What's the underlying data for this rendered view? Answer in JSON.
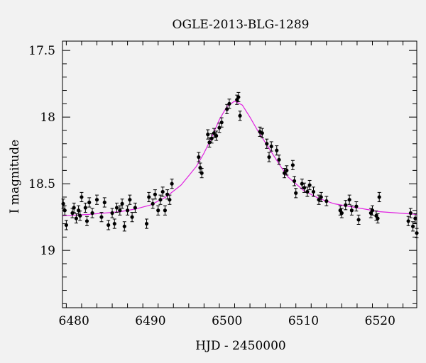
{
  "chart_data": {
    "type": "scatter",
    "title": "OGLE-2013-BLG-1289",
    "xlabel": "HJD - 2450000",
    "ylabel": "I magnitude",
    "xlim": [
      6478.5,
      6524.8
    ],
    "ylim": [
      19.43,
      17.43
    ],
    "y_inverted": true,
    "xticks": [
      6480,
      6490,
      6500,
      6510,
      6520
    ],
    "yticks": [
      17.5,
      18,
      18.5,
      19
    ],
    "ytick_labels": [
      "17.5",
      "18",
      "18.5",
      "19"
    ],
    "colors": {
      "points": "#000000",
      "model": "#e020e0",
      "background": "#f2f2f2"
    },
    "model": {
      "label": "",
      "x": [
        6478.5,
        6482,
        6486,
        6488,
        6490,
        6492,
        6494,
        6496,
        6497,
        6498,
        6499,
        6500,
        6501,
        6502,
        6503,
        6504,
        6505,
        6506,
        6507,
        6508,
        6510,
        6512,
        6514,
        6517,
        6520,
        6524.8
      ],
      "y": [
        18.74,
        18.73,
        18.71,
        18.69,
        18.66,
        18.6,
        18.51,
        18.37,
        18.27,
        18.15,
        18.02,
        17.92,
        17.88,
        17.91,
        18.0,
        18.1,
        18.19,
        18.28,
        18.37,
        18.45,
        18.55,
        18.61,
        18.65,
        18.68,
        18.71,
        18.73
      ]
    },
    "series": [
      {
        "x": [
          6478.6,
          6478.8,
          6479.0,
          6479.8,
          6480.0,
          6480.3,
          6480.6,
          6480.8,
          6481.0,
          6481.5,
          6481.7,
          6482.0,
          6482.4,
          6483.0,
          6483.6,
          6484.0,
          6484.5,
          6485.0,
          6485.3,
          6485.6,
          6486.0,
          6486.3,
          6486.6,
          6487.0,
          6487.3,
          6487.6,
          6488.0,
          6489.5,
          6489.8,
          6490.3,
          6490.6,
          6491.0,
          6491.3,
          6491.6,
          6491.9,
          6492.2,
          6492.5,
          6492.8,
          6496.3,
          6496.5,
          6496.7,
          6497.5,
          6497.7,
          6498.0,
          6498.3,
          6498.6,
          6499.0,
          6499.3,
          6500.0,
          6500.3,
          6501.3,
          6501.5,
          6501.7,
          6504.3,
          6504.6,
          6505.2,
          6505.5,
          6505.8,
          6506.5,
          6506.8,
          6507.5,
          6507.8,
          6508.6,
          6508.8,
          6509.0,
          6509.8,
          6510.1,
          6510.5,
          6510.8,
          6511.3,
          6512.0,
          6512.3,
          6513.0,
          6514.8,
          6515.0,
          6515.5,
          6516.0,
          6516.3,
          6516.9,
          6517.2,
          6518.8,
          6519.0,
          6519.5,
          6519.7,
          6519.9,
          6523.7,
          6524.0,
          6524.3,
          6524.6,
          6524.8
        ],
        "y": [
          18.65,
          18.7,
          18.81,
          18.72,
          18.68,
          18.76,
          18.7,
          18.74,
          18.6,
          18.68,
          18.78,
          18.64,
          18.72,
          18.62,
          18.75,
          18.64,
          18.81,
          18.72,
          18.8,
          18.68,
          18.7,
          18.65,
          18.82,
          18.7,
          18.62,
          18.75,
          18.68,
          18.8,
          18.6,
          18.65,
          18.58,
          18.7,
          18.62,
          18.56,
          18.7,
          18.58,
          18.62,
          18.5,
          18.3,
          18.38,
          18.42,
          18.13,
          18.19,
          18.16,
          18.12,
          18.14,
          18.08,
          18.04,
          17.94,
          17.9,
          17.87,
          17.85,
          17.99,
          18.11,
          18.12,
          18.2,
          18.3,
          18.22,
          18.25,
          18.32,
          18.42,
          18.4,
          18.36,
          18.48,
          18.57,
          18.5,
          18.53,
          18.56,
          18.51,
          18.56,
          18.62,
          18.6,
          18.63,
          18.7,
          18.72,
          18.66,
          18.62,
          18.7,
          18.67,
          18.77,
          18.72,
          18.7,
          18.74,
          18.76,
          18.6,
          18.78,
          18.72,
          18.82,
          18.76,
          18.87
        ],
        "err": [
          0.035,
          0.035,
          0.035,
          0.035,
          0.035,
          0.035,
          0.035,
          0.035,
          0.035,
          0.035,
          0.035,
          0.035,
          0.035,
          0.035,
          0.035,
          0.035,
          0.035,
          0.035,
          0.035,
          0.035,
          0.035,
          0.035,
          0.035,
          0.035,
          0.035,
          0.035,
          0.035,
          0.035,
          0.035,
          0.035,
          0.035,
          0.035,
          0.035,
          0.035,
          0.035,
          0.035,
          0.035,
          0.035,
          0.035,
          0.035,
          0.035,
          0.035,
          0.035,
          0.035,
          0.035,
          0.035,
          0.035,
          0.035,
          0.035,
          0.035,
          0.035,
          0.035,
          0.035,
          0.035,
          0.035,
          0.035,
          0.035,
          0.035,
          0.035,
          0.035,
          0.035,
          0.035,
          0.035,
          0.035,
          0.035,
          0.035,
          0.035,
          0.035,
          0.035,
          0.035,
          0.035,
          0.035,
          0.035,
          0.035,
          0.035,
          0.035,
          0.035,
          0.035,
          0.035,
          0.035,
          0.035,
          0.035,
          0.035,
          0.035,
          0.035,
          0.035,
          0.035,
          0.035,
          0.035,
          0.035
        ]
      }
    ],
    "grid": false,
    "legend": "none"
  }
}
